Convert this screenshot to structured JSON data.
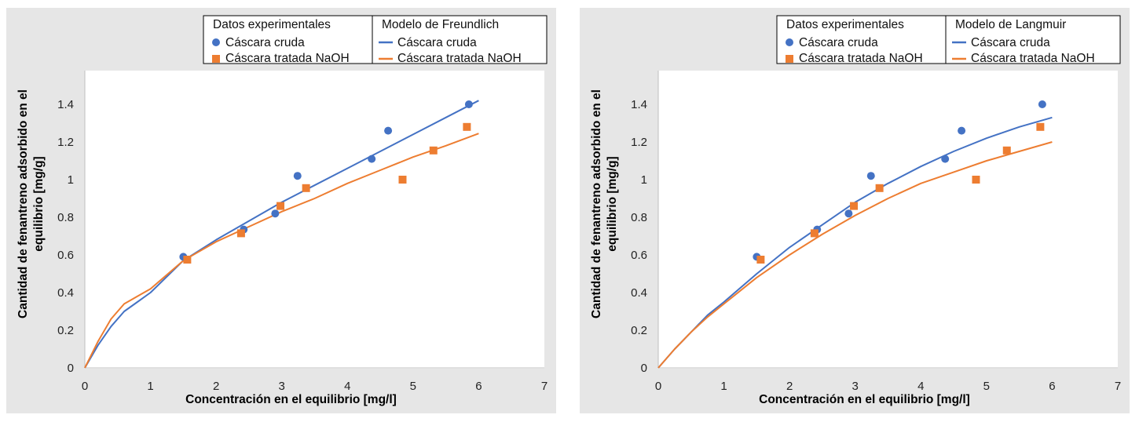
{
  "colors": {
    "cruda": "#4472C4",
    "tratada": "#ED7D31",
    "panel_bg": "#e6e6e6",
    "plot_bg": "#ffffff"
  },
  "chart_data": [
    {
      "type": "scatter",
      "xlabel": "Concentración en el equilibrio [mg/l]",
      "ylabel": [
        "Cantidad de fenantreno adsorbido en el",
        "equilibrio  [mg/g]"
      ],
      "xlim": [
        0,
        7
      ],
      "ylim": [
        0,
        1.5
      ],
      "xticks": [
        0,
        1,
        2,
        3,
        4,
        5,
        6,
        7
      ],
      "yticks": [
        0,
        0.2,
        0.4,
        0.6,
        0.8,
        1,
        1.2,
        1.4
      ],
      "legend": {
        "placement": "top",
        "group_data_title": "Datos experimentales",
        "group_model_title": "Modelo de Freundlich",
        "entries": [
          "Cáscara cruda",
          "Cáscara tratada NaOH"
        ]
      },
      "series": [
        {
          "name": "Cáscara cruda",
          "kind": "points",
          "marker": "circle",
          "color": "#4472C4",
          "x": [
            1.5,
            2.42,
            2.9,
            3.24,
            4.37,
            4.62,
            5.85
          ],
          "y": [
            0.59,
            0.735,
            0.82,
            1.02,
            1.11,
            1.26,
            1.4
          ]
        },
        {
          "name": "Cáscara tratada NaOH",
          "kind": "points",
          "marker": "square",
          "color": "#ED7D31",
          "x": [
            1.56,
            2.38,
            2.98,
            3.37,
            4.84,
            5.31,
            5.82
          ],
          "y": [
            0.575,
            0.715,
            0.86,
            0.955,
            1.0,
            1.155,
            1.28
          ]
        },
        {
          "name": "Cáscara cruda",
          "kind": "line",
          "color": "#4472C4",
          "x": [
            0,
            0.2,
            0.4,
            0.6,
            0.8,
            1.0,
            1.5,
            2.0,
            2.5,
            3.0,
            3.5,
            4.0,
            4.5,
            5.0,
            5.5,
            6.0
          ],
          "y": [
            0,
            0.12,
            0.22,
            0.3,
            0.35,
            0.4,
            0.57,
            0.68,
            0.78,
            0.88,
            0.97,
            1.06,
            1.15,
            1.24,
            1.33,
            1.42
          ]
        },
        {
          "name": "Cáscara tratada NaOH",
          "kind": "line",
          "color": "#ED7D31",
          "x": [
            0,
            0.2,
            0.4,
            0.6,
            0.8,
            1.0,
            1.5,
            2.0,
            2.5,
            3.0,
            3.5,
            4.0,
            4.5,
            5.0,
            5.5,
            6.0
          ],
          "y": [
            0,
            0.14,
            0.26,
            0.34,
            0.38,
            0.42,
            0.57,
            0.67,
            0.75,
            0.83,
            0.9,
            0.98,
            1.05,
            1.12,
            1.18,
            1.245
          ]
        }
      ]
    },
    {
      "type": "scatter",
      "xlabel": "Concentración en el equilibrio [mg/l]",
      "ylabel": [
        "Cantidad de fenantreno adsorbido en el",
        "equilibrio  [mg/g]"
      ],
      "xlim": [
        0,
        7
      ],
      "ylim": [
        0,
        1.5
      ],
      "xticks": [
        0,
        1,
        2,
        3,
        4,
        5,
        6,
        7
      ],
      "yticks": [
        0,
        0.2,
        0.4,
        0.6,
        0.8,
        1,
        1.2,
        1.4
      ],
      "legend": {
        "placement": "top",
        "group_data_title": "Datos experimentales",
        "group_model_title": "Modelo de Langmuir",
        "entries": [
          "Cáscara cruda",
          "Cáscara tratada NaOH"
        ]
      },
      "series": [
        {
          "name": "Cáscara cruda",
          "kind": "points",
          "marker": "circle",
          "color": "#4472C4",
          "x": [
            1.5,
            2.42,
            2.9,
            3.24,
            4.37,
            4.62,
            5.85
          ],
          "y": [
            0.59,
            0.735,
            0.82,
            1.02,
            1.11,
            1.26,
            1.4
          ]
        },
        {
          "name": "Cáscara tratada NaOH",
          "kind": "points",
          "marker": "square",
          "color": "#ED7D31",
          "x": [
            1.56,
            2.38,
            2.98,
            3.37,
            4.84,
            5.31,
            5.82
          ],
          "y": [
            0.575,
            0.715,
            0.86,
            0.955,
            1.0,
            1.155,
            1.28
          ]
        },
        {
          "name": "Cáscara cruda",
          "kind": "line",
          "color": "#4472C4",
          "x": [
            0,
            0.25,
            0.5,
            0.75,
            1.0,
            1.5,
            2.0,
            2.5,
            3.0,
            3.5,
            4.0,
            4.5,
            5.0,
            5.5,
            6.0
          ],
          "y": [
            0,
            0.1,
            0.19,
            0.28,
            0.35,
            0.5,
            0.64,
            0.76,
            0.88,
            0.98,
            1.07,
            1.15,
            1.22,
            1.28,
            1.33
          ]
        },
        {
          "name": "Cáscara tratada NaOH",
          "kind": "line",
          "color": "#ED7D31",
          "x": [
            0,
            0.25,
            0.5,
            0.75,
            1.0,
            1.5,
            2.0,
            2.5,
            3.0,
            3.5,
            4.0,
            4.5,
            5.0,
            5.5,
            6.0
          ],
          "y": [
            0,
            0.1,
            0.19,
            0.27,
            0.34,
            0.48,
            0.6,
            0.71,
            0.81,
            0.9,
            0.98,
            1.04,
            1.1,
            1.15,
            1.2
          ]
        }
      ]
    }
  ]
}
